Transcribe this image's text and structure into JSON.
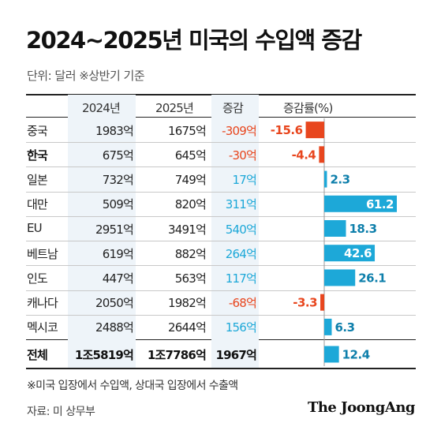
{
  "title": "2024~2025년 미국의 수입액 증감",
  "subtitle": "단위: 달러   ※상반기 기준",
  "headers": [
    "2024년",
    "2025년",
    "증감",
    "증감률(%)"
  ],
  "note": "※미국 입장에서 수입액, 상대국 입장에서 수출액",
  "source": "자료: 미 상무부",
  "brand": "The JoongAng",
  "colors": {
    "positive": "#1da8d8",
    "negative": "#e8461e",
    "column_shade": "#eef4f9"
  },
  "chart_data": {
    "type": "table",
    "columns": [
      "",
      "2024년",
      "2025년",
      "증감",
      "증감률(%)"
    ],
    "rows": [
      {
        "country": "중국",
        "y2024": "1983억",
        "y2025": "1675억",
        "change": "-309억",
        "rate": -15.6,
        "rate_label": "-15.6"
      },
      {
        "country": "한국",
        "y2024": "675억",
        "y2025": "645억",
        "change": "-30억",
        "rate": -4.4,
        "rate_label": "-4.4"
      },
      {
        "country": "일본",
        "y2024": "732억",
        "y2025": "749억",
        "change": "17억",
        "rate": 2.3,
        "rate_label": "2.3"
      },
      {
        "country": "대만",
        "y2024": "509억",
        "y2025": "820억",
        "change": "311억",
        "rate": 61.2,
        "rate_label": "61.2"
      },
      {
        "country": "EU",
        "y2024": "2951억",
        "y2025": "3491억",
        "change": "540억",
        "rate": 18.3,
        "rate_label": "18.3"
      },
      {
        "country": "베트남",
        "y2024": "619억",
        "y2025": "882억",
        "change": "264억",
        "rate": 42.6,
        "rate_label": "42.6"
      },
      {
        "country": "인도",
        "y2024": "447억",
        "y2025": "563억",
        "change": "117억",
        "rate": 26.1,
        "rate_label": "26.1"
      },
      {
        "country": "캐나다",
        "y2024": "2050억",
        "y2025": "1982억",
        "change": "-68억",
        "rate": -3.3,
        "rate_label": "-3.3"
      },
      {
        "country": "멕시코",
        "y2024": "2488억",
        "y2025": "2644억",
        "change": "156억",
        "rate": 6.3,
        "rate_label": "6.3"
      }
    ],
    "total": {
      "country": "전체",
      "y2024": "1조5819억",
      "y2025": "1조7786억",
      "change": "1967억",
      "rate": 12.4,
      "rate_label": "12.4"
    },
    "highlight_rows": [
      "한국",
      "전체"
    ]
  }
}
